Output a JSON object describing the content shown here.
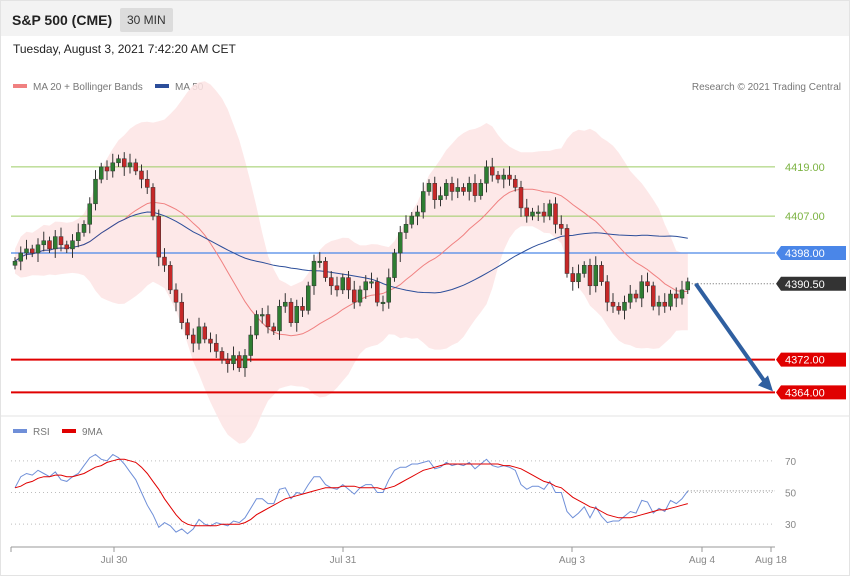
{
  "header": {
    "title": "S&P 500 (CME)",
    "timeframe": "30 MIN",
    "datetime": "Tuesday, August 3, 2021 7:42:20 AM CET"
  },
  "legend": {
    "ma20": "MA 20 + Bollinger Bands",
    "ma50": "MA 50",
    "credit": "Research © 2021 Trading Central",
    "rsi": "RSI",
    "ma9": "9MA"
  },
  "colors": {
    "up": "#2e7d32",
    "down": "#c62828",
    "band": "#fde4e4",
    "ma20": "#f08080",
    "ma50": "#2c4e9a",
    "resistance": "#9ccc65",
    "support": "#e00000",
    "pivot": "#4a86e8",
    "current": "#333333",
    "arrow": "#2f5fa0",
    "rsi": "#6f8fd8",
    "rsi_ma": "#e00000"
  },
  "chart_data": [
    {
      "type": "candlestick",
      "title": "S&P 500 (CME)",
      "ylim": [
        4358,
        4428
      ],
      "x_ticks": [
        "Jul 30",
        "Jul 31",
        "Aug 3",
        "Aug 4",
        "Aug 18"
      ],
      "levels": [
        {
          "value": "4419.00",
          "kind": "resistance"
        },
        {
          "value": "4407.00",
          "kind": "resistance"
        },
        {
          "value": "4398.00",
          "kind": "pivot"
        },
        {
          "value": "4390.50",
          "kind": "current"
        },
        {
          "value": "4372.00",
          "kind": "support"
        },
        {
          "value": "4364.00",
          "kind": "support"
        }
      ],
      "projection": {
        "from": 4390.5,
        "to": 4364.0
      },
      "closes": [
        4396,
        4398,
        4399,
        4398,
        4400,
        4401,
        4399,
        4402,
        4400,
        4399,
        4401,
        4403,
        4405,
        4410,
        4416,
        4419,
        4418,
        4420,
        4421,
        4419,
        4420,
        4418,
        4416,
        4414,
        4407,
        4397,
        4395,
        4389,
        4386,
        4381,
        4378,
        4376,
        4380,
        4377,
        4376,
        4374,
        4372,
        4371,
        4373,
        4370,
        4373,
        4378,
        4383,
        4383,
        4380,
        4379,
        4385,
        4386,
        4381,
        4385,
        4384,
        4390,
        4396,
        4396,
        4392,
        4390,
        4389,
        4392,
        4389,
        4386,
        4389,
        4391,
        4391,
        4386,
        4386,
        4392,
        4398,
        4403,
        4405,
        4407,
        4408,
        4413,
        4415,
        4411,
        4412,
        4415,
        4413,
        4414,
        4413,
        4415,
        4412,
        4415,
        4419,
        4417,
        4416,
        4417,
        4416,
        4414,
        4409,
        4407,
        4408,
        4408,
        4407,
        4410,
        4405,
        4404,
        4393,
        4391,
        4393,
        4395,
        4390,
        4395,
        4391,
        4386,
        4385,
        4384,
        4386,
        4388,
        4387,
        4391,
        4390,
        4385,
        4386,
        4385,
        4388,
        4387,
        4389,
        4391
      ]
    },
    {
      "type": "line",
      "series": [
        {
          "name": "RSI"
        },
        {
          "name": "9MA"
        }
      ],
      "ylim": [
        20,
        80
      ],
      "y_ticks": [
        70,
        50,
        30
      ],
      "rsi": [
        53,
        60,
        62,
        61,
        64,
        62,
        60,
        63,
        58,
        57,
        60,
        62,
        67,
        72,
        74,
        71,
        70,
        74,
        72,
        68,
        63,
        58,
        50,
        42,
        36,
        28,
        31,
        29,
        25,
        27,
        24,
        27,
        33,
        30,
        29,
        31,
        30,
        29,
        32,
        31,
        34,
        40,
        46,
        46,
        43,
        43,
        52,
        53,
        46,
        50,
        49,
        55,
        60,
        60,
        55,
        53,
        52,
        55,
        52,
        49,
        53,
        55,
        55,
        50,
        50,
        58,
        64,
        66,
        66,
        68,
        68,
        69,
        70,
        65,
        66,
        69,
        67,
        68,
        67,
        69,
        65,
        68,
        71,
        67,
        66,
        67,
        66,
        64,
        55,
        52,
        54,
        54,
        52,
        57,
        50,
        50,
        38,
        34,
        37,
        41,
        34,
        41,
        35,
        31,
        32,
        32,
        35,
        38,
        37,
        45,
        44,
        37,
        40,
        38,
        45,
        43,
        46,
        51
      ],
      "ma9": [
        53,
        54,
        56,
        57,
        59,
        60,
        60,
        61,
        61,
        60,
        60,
        61,
        62,
        64,
        66,
        67,
        69,
        70,
        71,
        71,
        70,
        69,
        66,
        62,
        57,
        52,
        46,
        41,
        36,
        32,
        30,
        29,
        29,
        29,
        29,
        29,
        30,
        30,
        30,
        30,
        31,
        33,
        36,
        38,
        40,
        42,
        44,
        46,
        47,
        48,
        49,
        50,
        51,
        52,
        53,
        53,
        53,
        54,
        54,
        54,
        53,
        53,
        53,
        53,
        52,
        53,
        54,
        56,
        58,
        60,
        62,
        64,
        65,
        66,
        67,
        68,
        68,
        68,
        68,
        68,
        68,
        68,
        68,
        68,
        68,
        67,
        67,
        66,
        65,
        63,
        61,
        59,
        57,
        56,
        54,
        53,
        50,
        47,
        45,
        43,
        41,
        40,
        38,
        36,
        35,
        34,
        34,
        34,
        35,
        36,
        37,
        38,
        39,
        39,
        40,
        41,
        42,
        43
      ]
    }
  ]
}
